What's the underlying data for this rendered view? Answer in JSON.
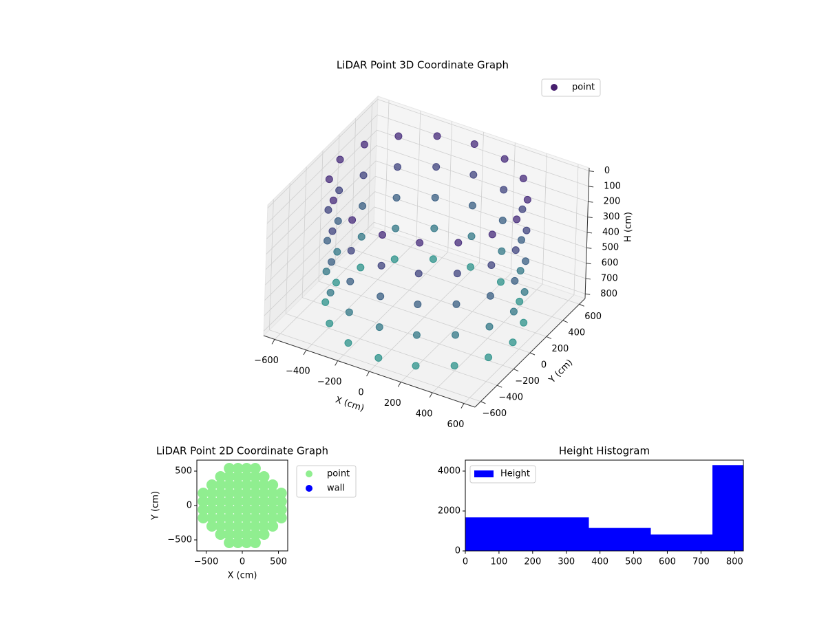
{
  "chart_data": [
    {
      "type": "scatter3d",
      "title": "LiDAR Point 3D Coordinate Graph",
      "xlabel": "X (cm)",
      "ylabel": "Y (cm)",
      "zlabel": "H (cm)",
      "legend": "upper right",
      "grid": true,
      "zinvert": true,
      "xlim": [
        -670,
        670
      ],
      "ylim": [
        -670,
        670
      ],
      "zlim": [
        -20,
        830
      ],
      "xticks": [
        {
          "value": -600,
          "label": "−600"
        },
        {
          "value": -400,
          "label": "−400"
        },
        {
          "value": -200,
          "label": "−200"
        },
        0,
        200,
        400,
        600
      ],
      "yticks": [
        {
          "value": -600,
          "label": "−600"
        },
        {
          "value": -400,
          "label": "−400"
        },
        {
          "value": -200,
          "label": "−200"
        },
        0,
        200,
        400,
        600
      ],
      "zticks": [
        0,
        100,
        200,
        300,
        400,
        500,
        600,
        700,
        800
      ],
      "series": [
        {
          "name": "point",
          "color": "#471f6e",
          "colormap": [
            "#46277a",
            "#2a958b"
          ],
          "x": [
            560,
            517,
            396,
            214,
            0,
            -214,
            -396,
            -517,
            -560,
            -517,
            -396,
            -214,
            0,
            214,
            396,
            517,
            560,
            517,
            396,
            214,
            0,
            -214,
            -396,
            -517,
            -560,
            -517,
            -396,
            -214,
            0,
            214,
            396,
            517,
            560,
            517,
            396,
            214,
            0,
            -214,
            -396,
            -517,
            -560,
            -517,
            -396,
            -214,
            0,
            214,
            396,
            517,
            560,
            517,
            396,
            214,
            0,
            -214,
            -396,
            -517,
            -560,
            -517,
            -396,
            -214,
            0,
            214,
            396,
            517,
            560,
            517,
            396,
            214,
            0,
            -214,
            -396,
            -517,
            -560,
            -517,
            -396,
            -214,
            0,
            214,
            396,
            517
          ],
          "y": [
            0,
            214,
            396,
            517,
            560,
            517,
            396,
            214,
            0,
            -214,
            -396,
            -517,
            -560,
            -517,
            -396,
            -214,
            0,
            214,
            396,
            517,
            560,
            517,
            396,
            214,
            0,
            -214,
            -396,
            -517,
            -560,
            -517,
            -396,
            -214,
            0,
            214,
            396,
            517,
            560,
            517,
            396,
            214,
            0,
            -214,
            -396,
            -517,
            -560,
            -517,
            -396,
            -214,
            0,
            214,
            396,
            517,
            560,
            517,
            396,
            214,
            0,
            -214,
            -396,
            -517,
            -560,
            -517,
            -396,
            -214,
            0,
            214,
            396,
            517,
            560,
            517,
            396,
            214,
            0,
            -214,
            -396,
            -517,
            -560,
            -517,
            -396,
            -214
          ],
          "h": [
            0,
            0,
            0,
            0,
            0,
            0,
            0,
            0,
            0,
            0,
            0,
            0,
            0,
            0,
            0,
            0,
            200,
            200,
            200,
            200,
            200,
            200,
            200,
            200,
            200,
            200,
            200,
            200,
            200,
            200,
            200,
            200,
            400,
            400,
            400,
            400,
            400,
            400,
            400,
            400,
            400,
            400,
            400,
            400,
            400,
            400,
            400,
            400,
            600,
            600,
            600,
            600,
            600,
            600,
            600,
            600,
            600,
            600,
            600,
            600,
            600,
            600,
            600,
            600,
            800,
            800,
            800,
            800,
            800,
            800,
            800,
            800,
            800,
            800,
            800,
            800,
            800,
            800,
            800,
            800
          ]
        }
      ]
    },
    {
      "type": "scatter",
      "title": "LiDAR Point 2D Coordinate Graph",
      "xlabel": "X (cm)",
      "ylabel": "Y (cm)",
      "legend": "outside upper right",
      "xlim": [
        -628,
        628
      ],
      "ylim": [
        -660,
        660
      ],
      "xticks": [
        {
          "value": -500,
          "label": "−500"
        },
        0,
        500
      ],
      "yticks": [
        {
          "value": -500,
          "label": "−500"
        },
        0,
        500
      ],
      "series": [
        {
          "name": "point",
          "color": "#90ee90",
          "x": [
            -540,
            -540,
            -540,
            -540,
            -420,
            -420,
            -420,
            -420,
            -420,
            -420,
            -300,
            -300,
            -300,
            -300,
            -300,
            -300,
            -300,
            -300,
            -180,
            -180,
            -180,
            -180,
            -180,
            -180,
            -180,
            -180,
            -180,
            -180,
            -60,
            -60,
            -60,
            -60,
            -60,
            -60,
            -60,
            -60,
            -60,
            -60,
            60,
            60,
            60,
            60,
            60,
            60,
            60,
            60,
            60,
            60,
            180,
            180,
            180,
            180,
            180,
            180,
            180,
            180,
            180,
            180,
            300,
            300,
            300,
            300,
            300,
            300,
            300,
            300,
            420,
            420,
            420,
            420,
            420,
            420,
            540,
            540,
            540,
            540
          ],
          "y": [
            -180,
            -60,
            60,
            180,
            -300,
            -180,
            -60,
            60,
            180,
            300,
            -420,
            -300,
            -180,
            -60,
            60,
            180,
            300,
            420,
            -540,
            -420,
            -300,
            -180,
            -60,
            60,
            180,
            300,
            420,
            540,
            -540,
            -420,
            -300,
            -180,
            -60,
            60,
            180,
            300,
            420,
            540,
            -540,
            -420,
            -300,
            -180,
            -60,
            60,
            180,
            300,
            420,
            540,
            -540,
            -420,
            -300,
            -180,
            -60,
            60,
            180,
            300,
            420,
            540,
            -420,
            -300,
            -180,
            -60,
            60,
            180,
            300,
            420,
            -300,
            -180,
            -60,
            60,
            180,
            300,
            -180,
            -60,
            60,
            180
          ]
        },
        {
          "name": "wall",
          "color": "#0000ff",
          "x": [],
          "y": []
        }
      ]
    },
    {
      "type": "histogram",
      "title": "Height Histogram",
      "legend": "upper left",
      "bins": [
        0,
        92,
        184,
        276,
        367,
        459,
        551,
        643,
        734,
        826
      ],
      "xlim": [
        0,
        826
      ],
      "ylim": [
        0,
        4550
      ],
      "xticks": [
        0,
        100,
        200,
        300,
        400,
        500,
        600,
        700,
        800
      ],
      "yticks": [
        0,
        2000,
        4000
      ],
      "series": [
        {
          "name": "Height",
          "color": "#0000ff",
          "values": [
            1680,
            1680,
            1680,
            1680,
            1150,
            1150,
            820,
            820,
            4300
          ]
        }
      ]
    }
  ]
}
